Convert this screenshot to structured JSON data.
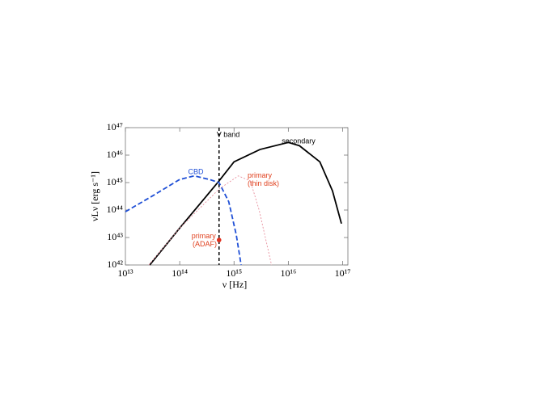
{
  "chart_data": {
    "type": "line",
    "xlabel": "ν [Hz]",
    "ylabel": "νLν [erg s⁻¹]",
    "xscale": "log",
    "yscale": "log",
    "xlim": [
      10000000000000.0,
      1.25e+17
    ],
    "ylim": [
      1e+42,
      1e+47
    ],
    "xticks": [
      {
        "value": 10000000000000.0,
        "label": "10¹³"
      },
      {
        "value": 100000000000000.0,
        "label": "10¹⁴"
      },
      {
        "value": 1000000000000000.0,
        "label": "10¹⁵"
      },
      {
        "value": 1e+16,
        "label": "10¹⁶"
      },
      {
        "value": 1e+17,
        "label": "10¹⁷"
      }
    ],
    "yticks": [
      {
        "value": 1e+42,
        "label": "10⁴²"
      },
      {
        "value": 1e+43,
        "label": "10⁴³"
      },
      {
        "value": 1e+44,
        "label": "10⁴⁴"
      },
      {
        "value": 1e+45,
        "label": "10⁴⁵"
      },
      {
        "value": 1e+46,
        "label": "10⁴⁶"
      },
      {
        "value": 1e+47,
        "label": "10⁴⁷"
      }
    ],
    "vline": {
      "x": 530000000000000.0,
      "label": "V band"
    },
    "series": [
      {
        "name": "secondary",
        "color": "#000000",
        "style": "solid",
        "x": [
          28000000000000.0,
          100000000000000.0,
          530000000000000.0,
          1000000000000000.0,
          3000000000000000.0,
          1e+16,
          1.6e+16,
          3.8e+16,
          6.5e+16,
          9.5e+16
        ],
        "values": [
          1e+42,
          2.2e+43,
          1.15e+45,
          5.7e+45,
          1.6e+46,
          2.9e+46,
          2.2e+46,
          5.7e+45,
          5e+44,
          3.2e+43
        ]
      },
      {
        "name": "CBD",
        "color": "#1f4fd6",
        "style": "dashed",
        "x": [
          10000000000000.0,
          31000000000000.0,
          100000000000000.0,
          185000000000000.0,
          350000000000000.0,
          530000000000000.0,
          800000000000000.0,
          1100000000000000.0,
          1350000000000000.0
        ],
        "values": [
          8.7e+43,
          3.2e+44,
          1.3e+45,
          1.75e+45,
          1.3e+45,
          1e+45,
          2e+44,
          1.25e+43,
          1e+42
        ]
      },
      {
        "name": "primary (thin disk)",
        "color": "#e8909e",
        "style": "dotted",
        "x": [
          27000000000000.0,
          100000000000000.0,
          530000000000000.0,
          1200000000000000.0,
          2000000000000000.0,
          2900000000000000.0,
          4900000000000000.0
        ],
        "values": [
          1e+42,
          2.2e+43,
          5.8e+44,
          1.75e+45,
          1.15e+45,
          1e+44,
          1e+42
        ]
      },
      {
        "name": "primary (ADAF)",
        "color": "#e0301e",
        "style": "point",
        "x": [
          530000000000000.0
        ],
        "values": [
          8.1e+42
        ]
      }
    ]
  }
}
